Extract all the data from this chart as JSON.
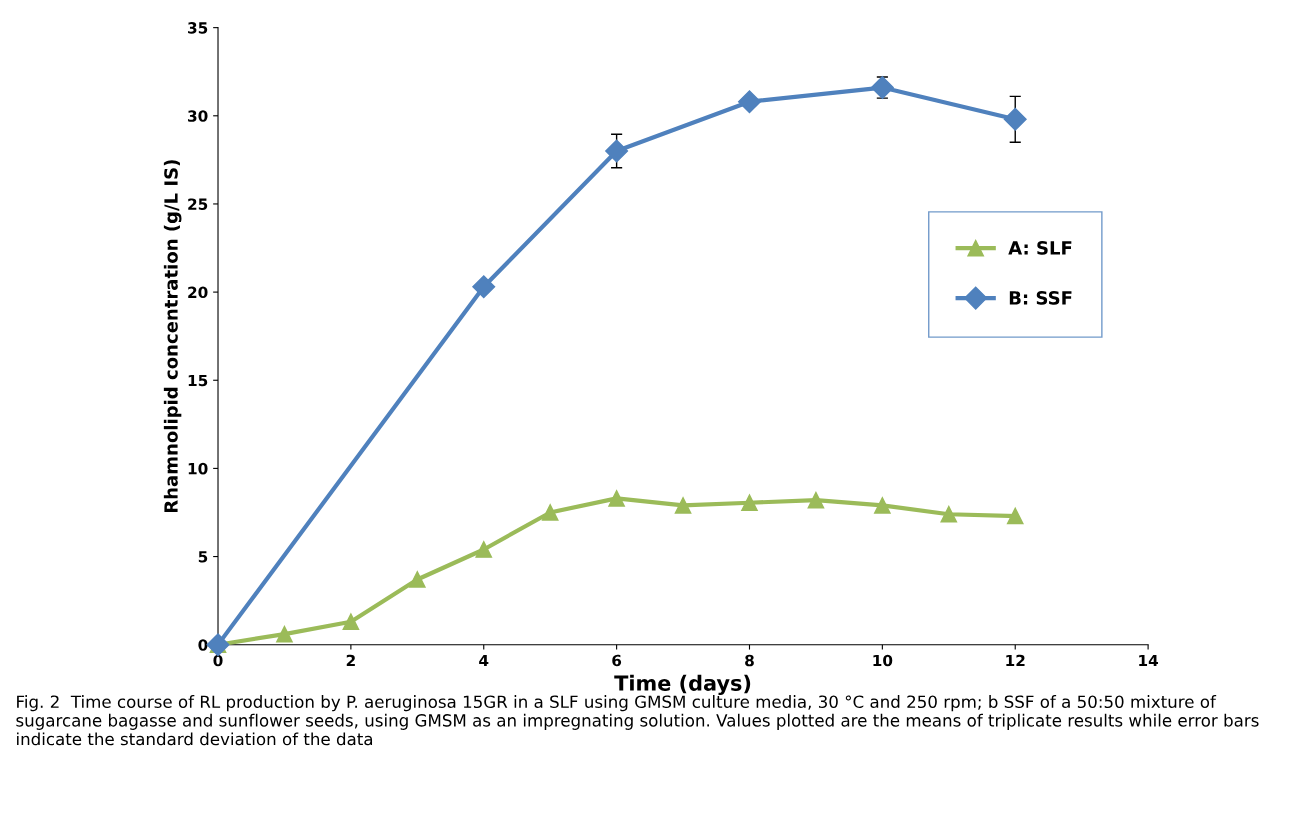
{
  "chart_data": {
    "type": "line",
    "xlabel": "Time (days)",
    "ylabel": "Rhamnolipid concentration (g/L IS)",
    "xlim": [
      0,
      14
    ],
    "xticks": [
      0,
      2,
      4,
      6,
      8,
      10,
      12,
      14
    ],
    "ylim": [
      0,
      35
    ],
    "yticks": [
      0,
      5,
      10,
      15,
      20,
      25,
      30,
      35
    ],
    "grid": false,
    "legend": "right",
    "line_style": "solid",
    "series": [
      {
        "name": "A: SLF",
        "color": "#9bbb59",
        "marker": "triangle",
        "x": [
          0,
          1,
          2,
          3,
          4,
          5,
          6,
          7,
          8,
          9,
          10,
          11,
          12
        ],
        "values": [
          0,
          0.6,
          1.3,
          3.7,
          5.4,
          7.5,
          8.3,
          7.9,
          8.05,
          8.2,
          7.9,
          7.4,
          7.3
        ]
      },
      {
        "name": "B: SSF",
        "color": "#4f81bd",
        "marker": "diamond",
        "x": [
          0,
          4,
          6,
          8,
          10,
          12
        ],
        "values": [
          0,
          20.3,
          28.0,
          30.8,
          31.6,
          29.8
        ],
        "errors": [
          null,
          null,
          0.95,
          null,
          0.6,
          1.3
        ]
      }
    ],
    "annotations": [
      "Fig. 2  Time course of RL production by P. aeruginosa 15GR in a SLF using GMSM culture media, 30 °C and 250 rpm; b SSF of a 50:50 mixture of sugarcane bagasse and sunflower seeds, using GMSM as an impregnating solution. Values plotted are the means of triplicate results while error bars indicate the standard deviation of the data"
    ]
  }
}
